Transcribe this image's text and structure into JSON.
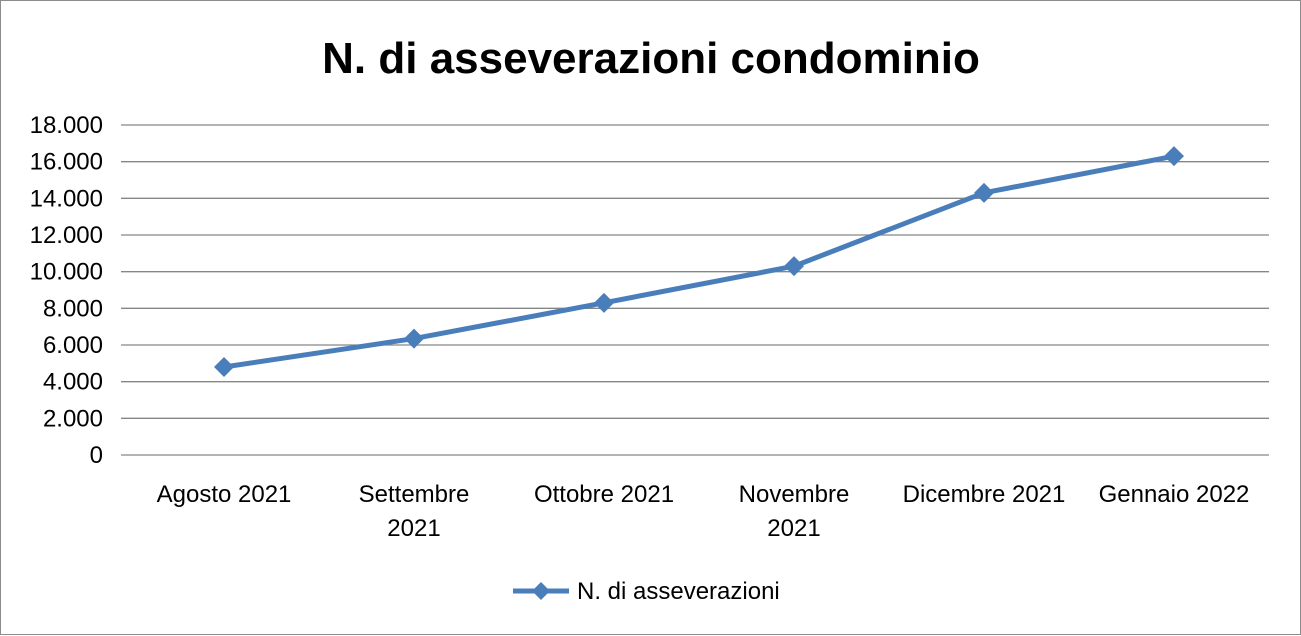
{
  "chart_data": {
    "type": "line",
    "title": "N. di asseverazioni condominio",
    "xlabel": "",
    "ylabel": "",
    "categories": [
      "Agosto 2021",
      "Settembre 2021",
      "Ottobre 2021",
      "Novembre 2021",
      "Dicembre 2021",
      "Gennaio 2022"
    ],
    "category_tick_lines": [
      [
        "Agosto 2021"
      ],
      [
        "Settembre",
        "2021"
      ],
      [
        "Ottobre 2021"
      ],
      [
        "Novembre",
        "2021"
      ],
      [
        "Dicembre 2021"
      ],
      [
        "Gennaio 2022"
      ]
    ],
    "series": [
      {
        "name": "N. di asseverazioni",
        "values": [
          4800,
          6350,
          8300,
          10300,
          14300,
          16300
        ],
        "color": "#4a7ebb"
      }
    ],
    "y_ticks": [
      "0",
      "2.000",
      "4.000",
      "6.000",
      "8.000",
      "10.000",
      "12.000",
      "14.000",
      "16.000",
      "18.000"
    ],
    "ylim": [
      0,
      18000
    ],
    "y_step": 2000,
    "grid": true,
    "marker": "diamond",
    "legend": {
      "position": "bottom",
      "entries": [
        "N. di asseverazioni"
      ]
    }
  }
}
